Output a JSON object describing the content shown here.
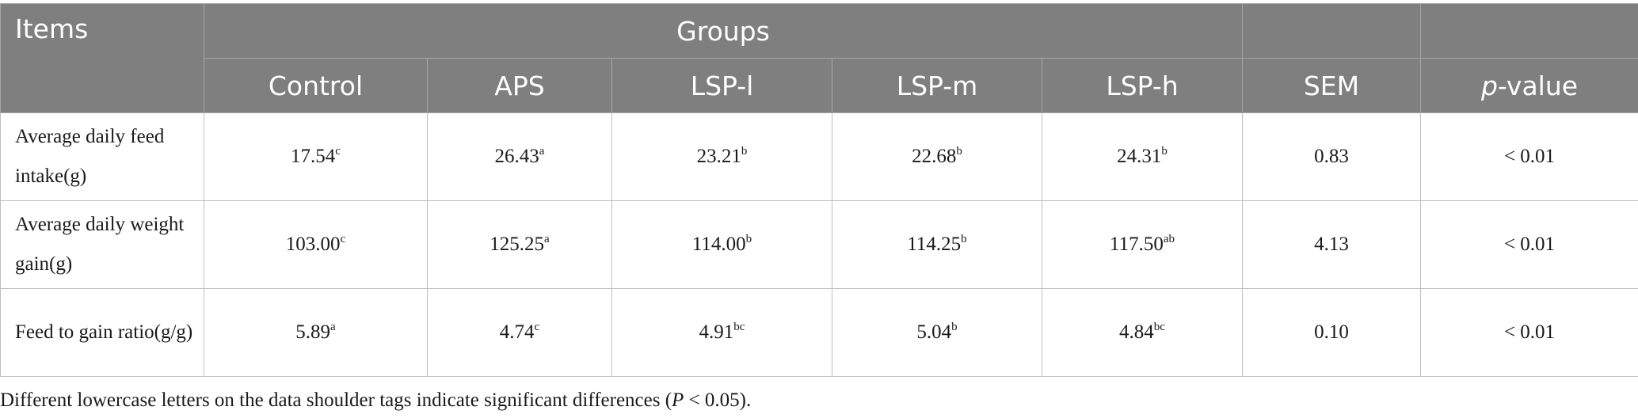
{
  "table": {
    "header": {
      "items": "Items",
      "groups": "Groups",
      "columns": [
        "Control",
        "APS",
        "LSP-l",
        "LSP-m",
        "LSP-h"
      ],
      "sem": "SEM",
      "p_value": {
        "italic": "p",
        "rest": "-value"
      }
    },
    "rows": [
      {
        "item": "Average daily feed intake(g)",
        "values": [
          {
            "value": "17.54",
            "sup": "c"
          },
          {
            "value": "26.43",
            "sup": "a"
          },
          {
            "value": "23.21",
            "sup": "b"
          },
          {
            "value": "22.68",
            "sup": "b"
          },
          {
            "value": "24.31",
            "sup": "b"
          }
        ],
        "sem": "0.83",
        "p": "< 0.01"
      },
      {
        "item": "Average daily weight gain(g)",
        "values": [
          {
            "value": "103.00",
            "sup": "c"
          },
          {
            "value": "125.25",
            "sup": "a"
          },
          {
            "value": "114.00",
            "sup": "b"
          },
          {
            "value": "114.25",
            "sup": "b"
          },
          {
            "value": "117.50",
            "sup": "ab"
          }
        ],
        "sem": "4.13",
        "p": "< 0.01"
      },
      {
        "item": "Feed to gain ratio(g/g)",
        "values": [
          {
            "value": "5.89",
            "sup": "a"
          },
          {
            "value": "4.74",
            "sup": "c"
          },
          {
            "value": "4.91",
            "sup": "bc"
          },
          {
            "value": "5.04",
            "sup": "b"
          },
          {
            "value": "4.84",
            "sup": "bc"
          }
        ],
        "sem": "0.10",
        "p": "< 0.01"
      }
    ]
  },
  "footnote": {
    "before": "Different lowercase letters on the data shoulder tags indicate significant differences (",
    "italic": "P",
    "after": " < 0.05)."
  }
}
